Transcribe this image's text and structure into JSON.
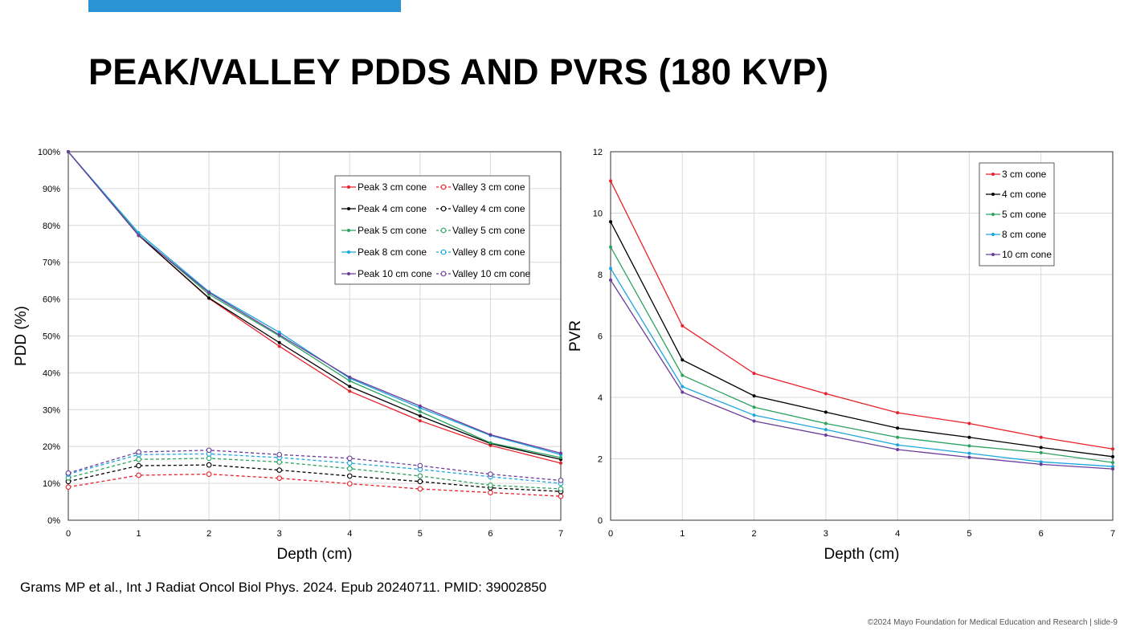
{
  "slide": {
    "title": "PEAK/VALLEY PDDS AND PVRS (180 KVP)",
    "citation": "Grams MP et al., Int J Radiat Oncol Biol Phys. 2024. Epub 20240711. PMID: 39002850",
    "footer": "©2024 Mayo Foundation for Medical Education and Research  |  slide-9",
    "accent_color": "#2a93d5"
  },
  "chart_data": [
    {
      "type": "line",
      "xlabel": "Depth (cm)",
      "ylabel": "PDD (%)",
      "x": [
        0,
        1,
        2,
        3,
        4,
        5,
        6,
        7
      ],
      "xlim": [
        0,
        7
      ],
      "ylim": [
        0,
        100
      ],
      "yticks": [
        0,
        10,
        20,
        30,
        40,
        50,
        60,
        70,
        80,
        90,
        100
      ],
      "ytick_labels": [
        "0%",
        "10%",
        "20%",
        "30%",
        "40%",
        "50%",
        "60%",
        "70%",
        "80%",
        "90%",
        "100%"
      ],
      "xticks": [
        0,
        1,
        2,
        3,
        4,
        5,
        6,
        7
      ],
      "grid": true,
      "legend_position": "top-right",
      "legend_columns": 2,
      "series": [
        {
          "name": "Peak 3 cm cone",
          "color": "#e8212b",
          "style": "solid",
          "marker": "dot",
          "values": [
            100,
            77.3,
            60.2,
            47.2,
            35.0,
            27.0,
            20.3,
            15.5
          ]
        },
        {
          "name": "Valley 3 cm cone",
          "color": "#e8212b",
          "style": "dashed",
          "marker": "circle",
          "values": [
            9.0,
            12.2,
            12.5,
            11.4,
            9.9,
            8.5,
            7.5,
            6.5
          ]
        },
        {
          "name": "Peak 4 cm cone",
          "color": "#000000",
          "style": "solid",
          "marker": "dot",
          "values": [
            100,
            77.3,
            60.3,
            48.2,
            36.3,
            28.3,
            20.8,
            16.5
          ]
        },
        {
          "name": "Valley 4 cm cone",
          "color": "#000000",
          "style": "dashed",
          "marker": "circle",
          "values": [
            10.5,
            14.8,
            15.0,
            13.6,
            12.0,
            10.5,
            8.8,
            7.8
          ]
        },
        {
          "name": "Peak 5 cm cone",
          "color": "#2ca25f",
          "style": "solid",
          "marker": "dot",
          "values": [
            100,
            77.5,
            61.3,
            50.0,
            37.8,
            29.5,
            21.0,
            17.0
          ]
        },
        {
          "name": "Valley 5 cm cone",
          "color": "#2ca25f",
          "style": "dashed",
          "marker": "circle",
          "values": [
            11.5,
            16.5,
            16.8,
            15.8,
            14.0,
            12.0,
            9.5,
            8.5
          ]
        },
        {
          "name": "Peak 8 cm cone",
          "color": "#1ba6e0",
          "style": "solid",
          "marker": "dot",
          "values": [
            100,
            78.0,
            62.0,
            51.0,
            38.5,
            30.5,
            23.0,
            17.8
          ]
        },
        {
          "name": "Valley 8 cm cone",
          "color": "#1ba6e0",
          "style": "dashed",
          "marker": "circle",
          "values": [
            12.5,
            17.8,
            18.0,
            17.0,
            15.5,
            13.8,
            11.8,
            10.0
          ]
        },
        {
          "name": "Peak 10 cm cone",
          "color": "#6a3d9a",
          "style": "solid",
          "marker": "dot",
          "values": [
            100,
            77.3,
            61.8,
            50.3,
            38.8,
            31.0,
            23.2,
            18.2
          ]
        },
        {
          "name": "Valley 10 cm cone",
          "color": "#6a3d9a",
          "style": "dashed",
          "marker": "circle",
          "values": [
            12.8,
            18.5,
            19.0,
            17.8,
            16.8,
            14.8,
            12.5,
            10.8
          ]
        }
      ]
    },
    {
      "type": "line",
      "xlabel": "Depth (cm)",
      "ylabel": "PVR",
      "x": [
        0,
        1,
        2,
        3,
        4,
        5,
        6,
        7
      ],
      "xlim": [
        0,
        7
      ],
      "ylim": [
        0,
        12
      ],
      "yticks": [
        0,
        2,
        4,
        6,
        8,
        10,
        12
      ],
      "ytick_labels": [
        "0",
        "2",
        "4",
        "6",
        "8",
        "10",
        "12"
      ],
      "xticks": [
        0,
        1,
        2,
        3,
        4,
        5,
        6,
        7
      ],
      "grid": true,
      "legend_position": "top-right",
      "legend_columns": 1,
      "series": [
        {
          "name": "3 cm cone",
          "color": "#e8212b",
          "style": "solid",
          "marker": "dot",
          "values": [
            11.05,
            6.33,
            4.78,
            4.12,
            3.5,
            3.15,
            2.7,
            2.32
          ]
        },
        {
          "name": "4 cm cone",
          "color": "#000000",
          "style": "solid",
          "marker": "dot",
          "values": [
            9.72,
            5.22,
            4.05,
            3.52,
            3.0,
            2.7,
            2.37,
            2.07
          ]
        },
        {
          "name": "5 cm cone",
          "color": "#2ca25f",
          "style": "solid",
          "marker": "dot",
          "values": [
            8.9,
            4.72,
            3.68,
            3.15,
            2.7,
            2.42,
            2.2,
            1.88
          ]
        },
        {
          "name": "8 cm cone",
          "color": "#1ba6e0",
          "style": "solid",
          "marker": "dot",
          "values": [
            8.2,
            4.35,
            3.42,
            2.95,
            2.45,
            2.18,
            1.9,
            1.75
          ]
        },
        {
          "name": "10 cm cone",
          "color": "#6a3d9a",
          "style": "solid",
          "marker": "dot",
          "values": [
            7.82,
            4.17,
            3.23,
            2.77,
            2.3,
            2.05,
            1.82,
            1.67
          ]
        }
      ]
    }
  ]
}
